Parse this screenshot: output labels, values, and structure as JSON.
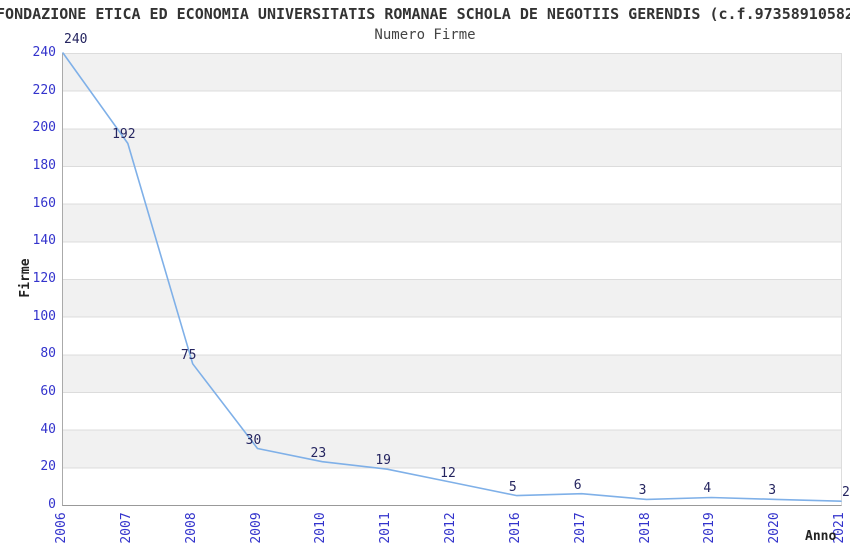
{
  "header": {
    "title": "FONDAZIONE ETICA ED ECONOMIA UNIVERSITATIS ROMANAE SCHOLA DE NEGOTIIS GERENDIS (c.f.97358910582",
    "subtitle": "Numero Firme"
  },
  "chart_data": {
    "type": "line",
    "title": "Numero Firme",
    "categories": [
      "2006",
      "2007",
      "2008",
      "2009",
      "2010",
      "2011",
      "2012",
      "2016",
      "2017",
      "2018",
      "2019",
      "2020",
      "2021"
    ],
    "values": [
      240,
      192,
      75,
      30,
      23,
      19,
      12,
      5,
      6,
      3,
      4,
      3,
      2
    ],
    "xlabel": "Anno",
    "ylabel": "Firme",
    "ylim": [
      0,
      240
    ],
    "yticks": [
      0,
      20,
      40,
      60,
      80,
      100,
      120,
      140,
      160,
      180,
      200,
      220,
      240
    ],
    "grid": "horizontal gridlines with alternating shaded bands every 20 units",
    "legend": "none",
    "colors": {
      "line": "#7fb0e8",
      "tick_labels": "#3333cc",
      "data_labels": "#252560",
      "band": "#f1f1f1",
      "gridline": "#dcdcdc",
      "title_text": "#333333"
    }
  }
}
